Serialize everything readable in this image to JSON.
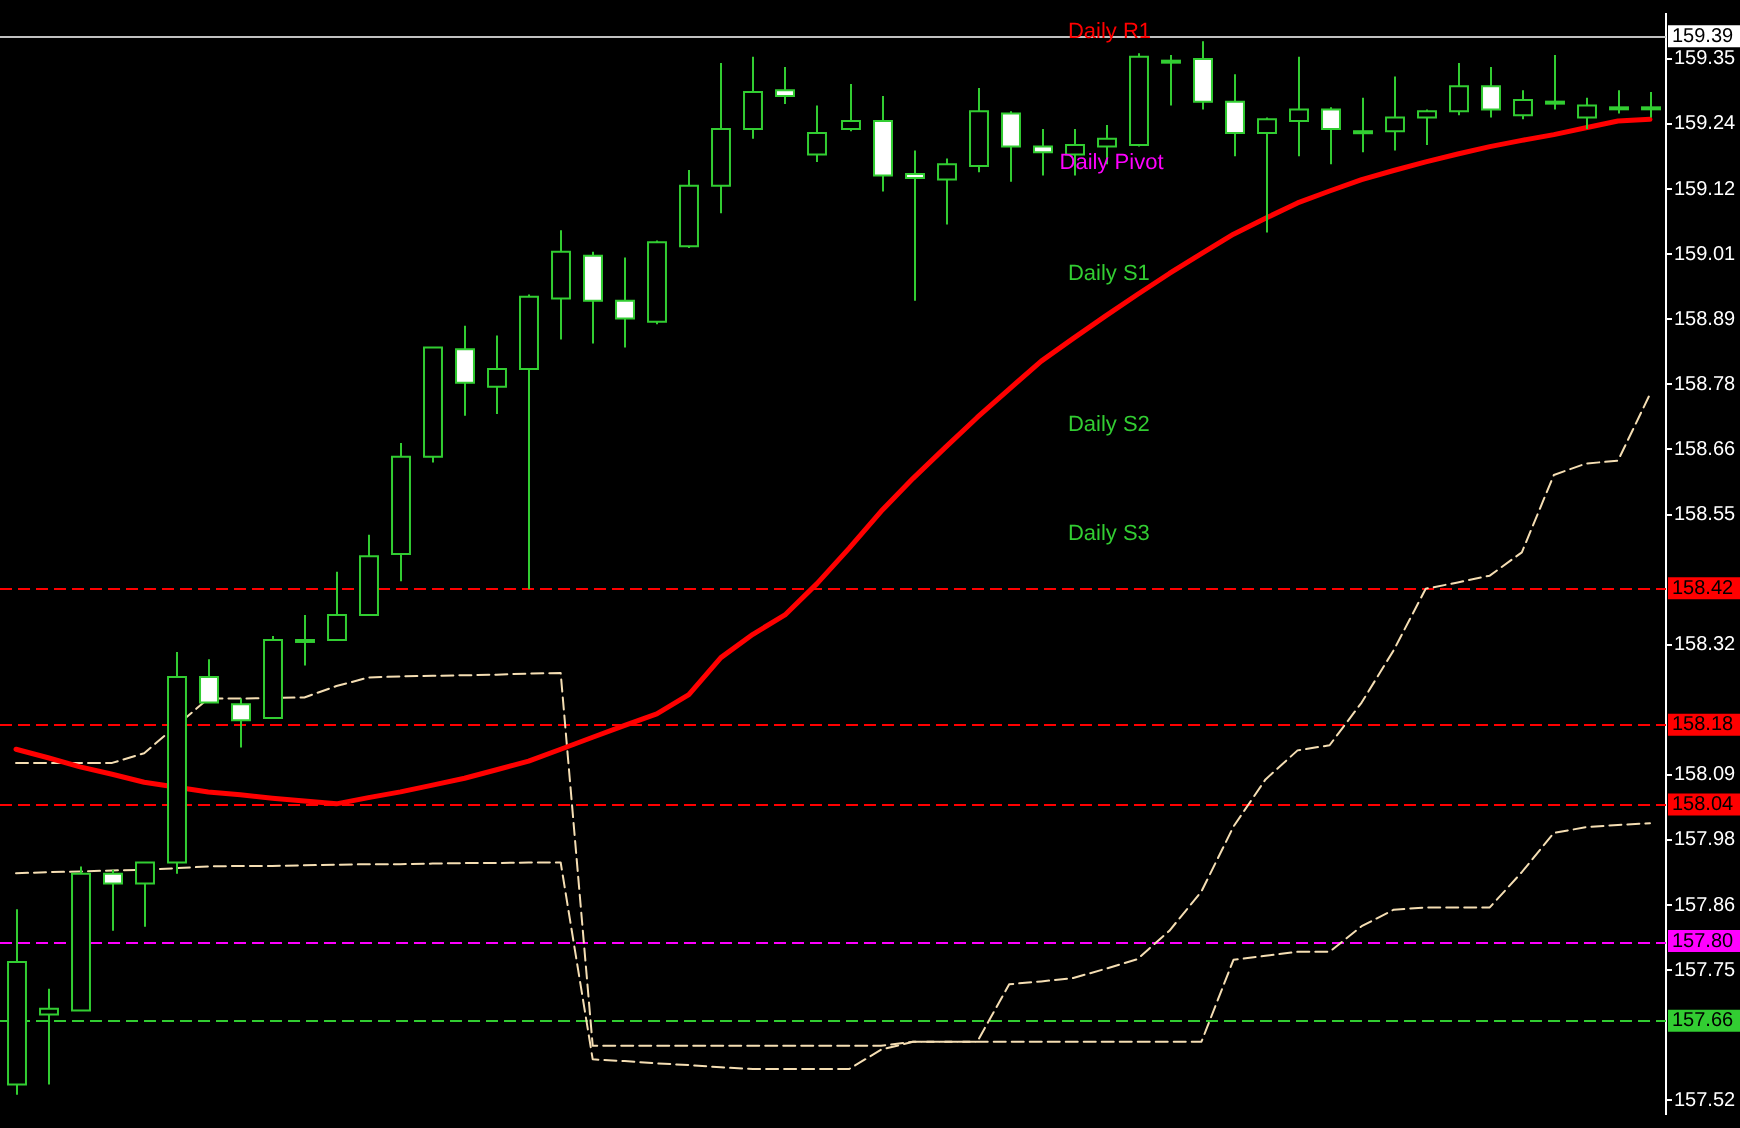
{
  "chart_data": {
    "type": "candlestick",
    "categories": [
      null,
      null,
      null,
      null,
      null,
      null,
      null,
      null,
      null,
      null,
      null,
      null,
      null,
      null,
      null,
      null,
      null,
      null,
      null,
      null,
      null,
      null,
      null,
      null,
      null,
      null,
      null,
      null,
      null,
      null,
      null,
      null,
      null,
      null,
      null,
      null,
      null,
      null,
      null,
      null,
      null,
      null,
      null,
      null,
      null,
      null,
      null,
      null,
      null,
      null,
      null,
      null
    ],
    "ohlc": [
      [
        157.548,
        157.856,
        157.53,
        157.763
      ],
      [
        157.671,
        157.716,
        157.548,
        157.681
      ],
      [
        157.678,
        157.931,
        157.678,
        157.918
      ],
      [
        157.918,
        157.925,
        157.818,
        157.901
      ],
      [
        157.901,
        157.938,
        157.825,
        157.938
      ],
      [
        157.938,
        158.308,
        157.918,
        158.264
      ],
      [
        158.264,
        158.295,
        158.219,
        158.219
      ],
      [
        158.216,
        158.226,
        158.14,
        158.188
      ],
      [
        158.192,
        158.336,
        158.192,
        158.329
      ],
      [
        158.329,
        158.373,
        158.284,
        158.329
      ],
      [
        158.329,
        158.449,
        158.329,
        158.373
      ],
      [
        158.373,
        158.514,
        158.373,
        158.476
      ],
      [
        158.48,
        158.675,
        158.432,
        158.651
      ],
      [
        158.651,
        158.843,
        158.641,
        158.843
      ],
      [
        158.84,
        158.881,
        158.723,
        158.781
      ],
      [
        158.774,
        158.864,
        158.726,
        158.805
      ],
      [
        158.805,
        158.936,
        158.418,
        158.932
      ],
      [
        158.929,
        159.049,
        158.857,
        159.011
      ],
      [
        159.004,
        159.011,
        158.85,
        158.925
      ],
      [
        158.925,
        159.001,
        158.843,
        158.894
      ],
      [
        158.888,
        159.031,
        158.884,
        159.028
      ],
      [
        159.021,
        159.155,
        159.018,
        159.127
      ],
      [
        159.127,
        159.343,
        159.079,
        159.227
      ],
      [
        159.227,
        159.354,
        159.21,
        159.292
      ],
      [
        159.295,
        159.336,
        159.271,
        159.285
      ],
      [
        159.182,
        159.268,
        159.169,
        159.22
      ],
      [
        159.227,
        159.306,
        159.223,
        159.241
      ],
      [
        159.241,
        159.285,
        159.117,
        159.145
      ],
      [
        159.148,
        159.189,
        158.925,
        159.141
      ],
      [
        159.138,
        159.175,
        159.059,
        159.165
      ],
      [
        159.162,
        159.299,
        159.151,
        159.258
      ],
      [
        159.254,
        159.258,
        159.134,
        159.196
      ],
      [
        159.196,
        159.227,
        159.145,
        159.186
      ],
      [
        159.182,
        159.227,
        159.145,
        159.199
      ],
      [
        159.196,
        159.234,
        159.165,
        159.21
      ],
      [
        159.199,
        159.36,
        159.196,
        159.354
      ],
      [
        159.347,
        159.357,
        159.268,
        159.347
      ],
      [
        159.35,
        159.381,
        159.261,
        159.275
      ],
      [
        159.275,
        159.323,
        159.179,
        159.22
      ],
      [
        159.22,
        159.247,
        159.045,
        159.244
      ],
      [
        159.241,
        159.354,
        159.179,
        159.261
      ],
      [
        159.261,
        159.265,
        159.165,
        159.227
      ],
      [
        159.223,
        159.282,
        159.186,
        159.223
      ],
      [
        159.223,
        159.319,
        159.189,
        159.247
      ],
      [
        159.247,
        159.261,
        159.199,
        159.258
      ],
      [
        159.258,
        159.343,
        159.251,
        159.302
      ],
      [
        159.302,
        159.336,
        159.247,
        159.261
      ],
      [
        159.251,
        159.295,
        159.244,
        159.278
      ],
      [
        159.275,
        159.357,
        159.261,
        159.275
      ],
      [
        159.247,
        159.282,
        159.227,
        159.268
      ],
      [
        159.265,
        159.295,
        159.254,
        159.265
      ],
      [
        159.265,
        159.292,
        159.247,
        159.265
      ]
    ],
    "color": "#32cd32",
    "colors": [
      "#000000",
      "#000000",
      "#000000",
      "#ffffff",
      "#000000",
      "#000000",
      "#ffffff",
      "#ffffff",
      "#000000",
      "#000000",
      "#000000",
      "#000000",
      "#000000",
      "#000000",
      "#ffffff",
      "#000000",
      "#000000",
      "#000000",
      "#ffffff",
      "#ffffff",
      "#000000",
      "#000000",
      "#000000",
      "#000000",
      "#ffffff",
      "#000000",
      "#000000",
      "#ffffff",
      "#ffffff",
      "#000000",
      "#000000",
      "#ffffff",
      "#ffffff",
      "#000000",
      "#000000",
      "#000000",
      "#000000",
      "#ffffff",
      "#ffffff",
      "#000000",
      "#000000",
      "#ffffff",
      "#000000",
      "#000000",
      "#000000",
      "#000000",
      "#ffffff",
      "#000000",
      "#000000",
      "#000000",
      "#000000",
      "#000000"
    ],
    "series": [
      {
        "type": "line",
        "color": "#ff0000",
        "line_style": "solid",
        "values": [
          158.137,
          158.122,
          158.106,
          158.093,
          158.079,
          null,
          158.062,
          158.057,
          158.051,
          158.046,
          158.041,
          158.052,
          158.062,
          158.074,
          158.086,
          158.101,
          158.116,
          158.137,
          158.158,
          158.179,
          158.199,
          158.233,
          158.298,
          158.339,
          158.373,
          158.428,
          158.49,
          158.555,
          158.613,
          158.667,
          158.72,
          158.77,
          158.819,
          158.859,
          158.898,
          158.936,
          158.973,
          159.008,
          159.042,
          159.07,
          159.097,
          159.118,
          159.138,
          159.154,
          159.169,
          159.183,
          159.196,
          159.207,
          159.217,
          159.229,
          159.241,
          159.244
        ]
      },
      {
        "type": "line",
        "color": "#f5deb3",
        "line_style": "dashed",
        "values": [
          158.113,
          158.113,
          158.113,
          158.113,
          158.13,
          null,
          158.226,
          158.226,
          null,
          158.228,
          158.248,
          158.263,
          158.265,
          158.266,
          158.267,
          158.268,
          158.27,
          158.271,
          157.616,
          157.616,
          157.616,
          157.616,
          157.616,
          157.616,
          157.616,
          157.616,
          157.616,
          157.616,
          157.623,
          157.623,
          157.623,
          157.724,
          157.729,
          157.735,
          157.751,
          157.768,
          157.818,
          157.887,
          158.001,
          158.084,
          158.135,
          158.144,
          158.219,
          158.311,
          158.419,
          158.43,
          158.442,
          158.483,
          158.619,
          158.639,
          158.644,
          158.761
        ]
      },
      {
        "type": "line",
        "color": "#f5deb3",
        "line_style": "dashed",
        "values": [
          157.919,
          157.921,
          157.922,
          157.924,
          157.925,
          157.928,
          157.931,
          157.932,
          157.932,
          157.933,
          157.934,
          157.935,
          157.935,
          157.936,
          157.937,
          157.937,
          157.938,
          157.938,
          157.592,
          157.589,
          157.585,
          157.582,
          157.578,
          157.575,
          157.575,
          157.575,
          157.575,
          157.609,
          157.623,
          157.623,
          157.623,
          157.623,
          157.623,
          157.623,
          157.623,
          157.623,
          157.623,
          157.623,
          157.767,
          157.774,
          157.781,
          157.781,
          157.826,
          157.855,
          157.859,
          157.859,
          157.859,
          157.921,
          157.99,
          158.0,
          158.004,
          158.007
        ]
      }
    ],
    "marker": "none",
    "ylim": [
      157.496,
      159.429
    ],
    "yticks": [
      {
        "value": 159.35,
        "label": "159.35"
      },
      {
        "value": 159.236,
        "label": "159.24"
      },
      {
        "value": 159.121,
        "label": "159.12"
      },
      {
        "value": 159.007,
        "label": "159.01"
      },
      {
        "value": 158.893,
        "label": "158.89"
      },
      {
        "value": 158.778,
        "label": "158.78"
      },
      {
        "value": 158.664,
        "label": "158.66"
      },
      {
        "value": 158.549,
        "label": "158.55"
      },
      {
        "value": 158.321,
        "label": "158.32"
      },
      {
        "value": 158.092,
        "label": "158.09"
      },
      {
        "value": 157.978,
        "label": "157.98"
      },
      {
        "value": 157.863,
        "label": "157.86"
      },
      {
        "value": 157.749,
        "label": "157.75"
      },
      {
        "value": 157.52,
        "label": "157.52"
      }
    ],
    "tick_labels": "y",
    "grid": false,
    "legend": false,
    "ref_lines": [
      {
        "axis": "y",
        "value": 159.39,
        "label": "159.39",
        "color": "#c0c0c0",
        "line_style": "solid"
      },
      {
        "axis": "y",
        "value": 158.42,
        "label": "158.42",
        "color": "#ff0000",
        "line_style": "dashed"
      },
      {
        "axis": "y",
        "value": 158.18,
        "label": "158.18",
        "color": "#ff0000",
        "line_style": "dashed"
      },
      {
        "axis": "y",
        "value": 158.04,
        "label": "158.04",
        "color": "#ff0000",
        "line_style": "dashed"
      },
      {
        "axis": "y",
        "value": 157.8,
        "label": "157.80",
        "color": "#ff00ff",
        "line_style": "dashed"
      },
      {
        "axis": "y",
        "value": 157.66,
        "label": "157.66",
        "color": "#32cd32",
        "line_style": "dashed"
      }
    ],
    "annotations": [
      "Daily R1",
      "Daily Pivot",
      "Daily S1",
      "Daily S2",
      "Daily S3"
    ]
  }
}
